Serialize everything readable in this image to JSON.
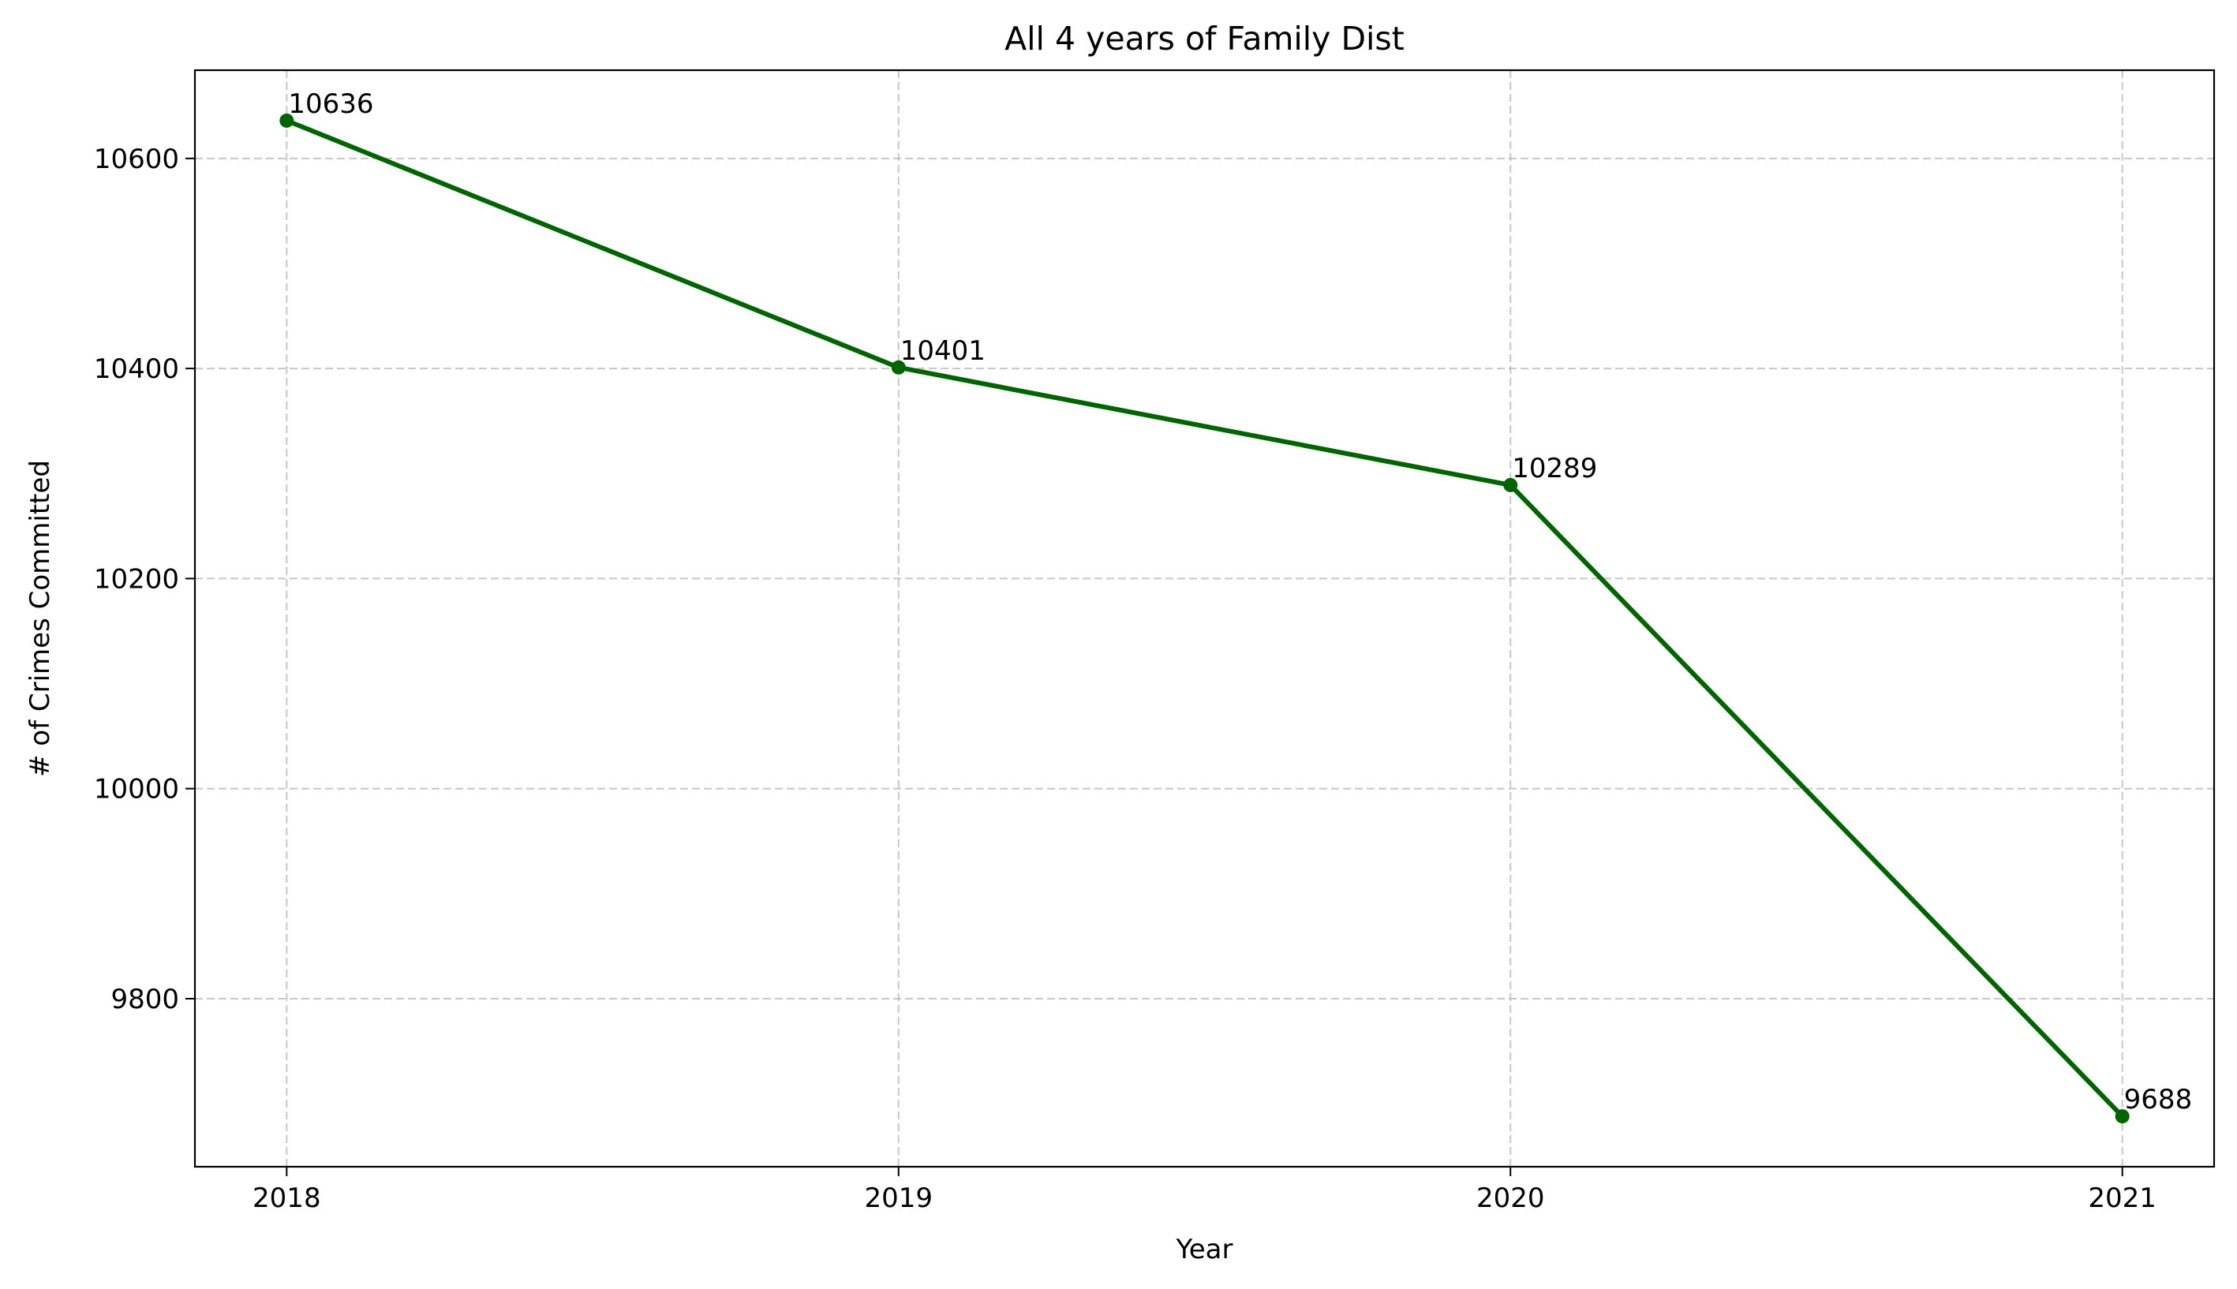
{
  "chart_data": {
    "type": "line",
    "title": "All 4 years of Family Dist",
    "xlabel": "Year",
    "ylabel": "# of Crimes Committed",
    "categories": [
      "2018",
      "2019",
      "2020",
      "2021"
    ],
    "series": [
      {
        "values": [
          10636,
          10401,
          10289,
          9688
        ],
        "color": "#006400"
      }
    ],
    "data_labels": [
      "10636",
      "10401",
      "10289",
      "9688"
    ],
    "yticks": [
      9800,
      10000,
      10200,
      10400,
      10600
    ],
    "ytick_labels": [
      "9800",
      "10000",
      "10200",
      "10400",
      "10600"
    ],
    "ylim": [
      9640,
      10684
    ],
    "grid": true,
    "marker": "circle"
  }
}
